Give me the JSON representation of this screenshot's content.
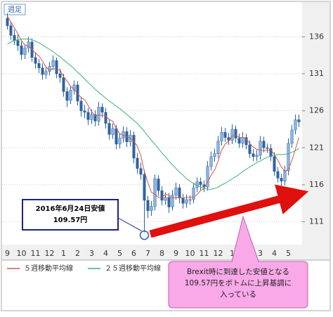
{
  "chart_data": {
    "type": "candlestick",
    "period_label": "週足",
    "categories": [
      "9",
      null,
      null,
      null,
      "10",
      null,
      null,
      null,
      "11",
      null,
      null,
      null,
      "12",
      null,
      null,
      null,
      "1",
      null,
      null,
      null,
      "2",
      null,
      null,
      null,
      "3",
      null,
      null,
      null,
      "4",
      null,
      null,
      null,
      "5",
      null,
      null,
      null,
      "6",
      null,
      null,
      null,
      "7",
      null,
      null,
      null,
      "8",
      null,
      null,
      null,
      "9",
      null,
      null,
      null,
      "10",
      null,
      null,
      null,
      "11",
      null,
      null,
      null,
      "12",
      null,
      null,
      null,
      "1",
      null,
      null,
      null,
      "2",
      null,
      null,
      null,
      "3",
      null,
      null,
      null,
      "4",
      null,
      null,
      null,
      "5",
      null,
      null,
      null
    ],
    "open": [
      138.5,
      137.5,
      136.2,
      135.5,
      134.8,
      133.6,
      134.5,
      135.3,
      133.2,
      132.4,
      131.8,
      130.9,
      131.3,
      132.0,
      132.8,
      131.0,
      130.5,
      128.6,
      127.4,
      128.8,
      129.5,
      127.3,
      126.0,
      125.8,
      124.8,
      125.5,
      124.6,
      126.5,
      125.8,
      124.3,
      122.8,
      123.6,
      121.5,
      122.3,
      123.2,
      121.8,
      122.7,
      119.6,
      118.2,
      117.4,
      113.9,
      112.5,
      113.1,
      116.8,
      115.2,
      113.9,
      114.3,
      113.0,
      114.6,
      115.6,
      114.2,
      113.5,
      114.0,
      114.0,
      115.6,
      116.4,
      116.0,
      115.7,
      118.5,
      119.8,
      120.2,
      121.9,
      123.1,
      122.4,
      122.0,
      123.5,
      122.3,
      121.6,
      122.4,
      121.4,
      120.2,
      119.8,
      120.0,
      121.9,
      121.0,
      120.9,
      119.8,
      117.8,
      116.9,
      116.5,
      117.9,
      121.6,
      123.4,
      124.8
    ],
    "high": [
      139.2,
      138.0,
      137.0,
      136.3,
      135.4,
      135.0,
      136.0,
      135.8,
      133.9,
      133.0,
      132.4,
      131.9,
      132.6,
      133.5,
      133.2,
      131.7,
      131.0,
      129.2,
      129.4,
      130.1,
      130.0,
      127.9,
      126.8,
      126.4,
      126.2,
      126.1,
      127.2,
      127.0,
      126.4,
      124.9,
      124.3,
      124.1,
      123.0,
      123.9,
      123.8,
      123.4,
      123.2,
      120.3,
      119.0,
      118.0,
      114.5,
      113.8,
      117.4,
      117.3,
      115.8,
      115.0,
      114.9,
      115.3,
      116.3,
      116.1,
      114.8,
      114.7,
      114.6,
      116.2,
      117.0,
      117.0,
      116.6,
      119.2,
      120.5,
      120.9,
      122.6,
      123.8,
      123.7,
      123.0,
      124.2,
      124.0,
      122.9,
      123.1,
      122.9,
      122.0,
      120.8,
      120.7,
      122.6,
      122.5,
      121.6,
      121.5,
      120.4,
      118.4,
      117.5,
      118.6,
      122.3,
      124.1,
      125.5,
      125.5
    ],
    "low": [
      137.0,
      135.6,
      134.9,
      134.1,
      132.9,
      133.0,
      133.9,
      132.6,
      131.7,
      131.1,
      130.2,
      130.3,
      130.8,
      131.5,
      130.4,
      129.8,
      127.9,
      126.5,
      126.9,
      128.2,
      126.7,
      125.2,
      125.0,
      124.1,
      124.2,
      123.9,
      124.0,
      125.1,
      123.6,
      122.1,
      122.2,
      120.8,
      120.9,
      121.7,
      121.1,
      121.2,
      118.9,
      117.5,
      116.7,
      109.57,
      111.5,
      111.8,
      112.5,
      114.5,
      113.2,
      113.3,
      112.2,
      112.5,
      114.0,
      113.5,
      112.8,
      112.9,
      113.3,
      113.5,
      115.0,
      115.3,
      115.0,
      115.2,
      117.9,
      119.1,
      119.6,
      121.3,
      121.8,
      121.4,
      121.5,
      121.7,
      121.0,
      121.0,
      120.8,
      119.6,
      119.2,
      119.2,
      119.4,
      120.4,
      120.3,
      119.2,
      117.2,
      116.3,
      115.9,
      115.9,
      117.3,
      121.0,
      122.8,
      123.8
    ],
    "close": [
      137.5,
      136.2,
      135.5,
      134.8,
      133.6,
      134.5,
      135.3,
      133.2,
      132.4,
      131.8,
      130.9,
      131.3,
      132.0,
      132.8,
      131.0,
      130.5,
      128.6,
      127.4,
      128.8,
      129.5,
      127.3,
      126.0,
      125.8,
      124.8,
      125.5,
      124.6,
      126.5,
      125.8,
      124.3,
      122.8,
      123.6,
      121.5,
      122.3,
      123.2,
      121.8,
      122.7,
      119.6,
      118.2,
      117.4,
      113.9,
      112.5,
      113.1,
      116.8,
      115.2,
      113.9,
      114.3,
      113.0,
      114.6,
      115.6,
      114.2,
      113.5,
      114.0,
      114.0,
      115.6,
      116.4,
      116.0,
      115.7,
      118.5,
      119.8,
      120.2,
      121.9,
      123.1,
      122.4,
      122.0,
      123.5,
      122.3,
      121.6,
      122.4,
      121.4,
      120.2,
      119.8,
      120.0,
      121.9,
      121.0,
      120.9,
      119.8,
      117.8,
      116.9,
      116.5,
      117.9,
      121.6,
      123.4,
      124.8,
      124.5
    ],
    "up_color": "#8ab4dc",
    "down_color": "#2f62a3",
    "series": [
      {
        "name": "５週移動平均線",
        "color": "#d9534f",
        "values": [
          138.8,
          138.0,
          137.2,
          136.4,
          135.5,
          134.9,
          134.7,
          134.3,
          133.8,
          133.4,
          132.7,
          131.9,
          131.5,
          131.7,
          131.6,
          131.5,
          130.6,
          130.0,
          129.3,
          128.9,
          128.3,
          127.8,
          127.5,
          126.7,
          125.9,
          125.3,
          125.4,
          125.4,
          125.3,
          124.8,
          124.6,
          123.6,
          122.9,
          122.7,
          122.5,
          122.3,
          121.9,
          121.2,
          119.9,
          117.8,
          116.3,
          115.0,
          114.7,
          114.3,
          114.3,
          114.7,
          114.6,
          114.2,
          114.3,
          114.3,
          114.2,
          114.3,
          114.3,
          114.3,
          114.7,
          115.2,
          115.5,
          116.4,
          117.3,
          118.0,
          119.2,
          120.7,
          121.5,
          121.9,
          122.6,
          122.7,
          122.4,
          122.4,
          122.2,
          121.6,
          121.1,
          120.8,
          120.7,
          120.6,
          120.7,
          120.7,
          120.1,
          119.3,
          118.4,
          117.8,
          118.1,
          119.3,
          120.8,
          122.4
        ]
      },
      {
        "name": "２５週移動平均線",
        "color": "#3cb371",
        "values": [
          135.0,
          135.3,
          135.5,
          135.6,
          135.7,
          135.7,
          135.7,
          135.6,
          135.4,
          135.2,
          134.9,
          134.6,
          134.3,
          134.0,
          133.6,
          133.3,
          132.9,
          132.5,
          132.1,
          131.7,
          131.2,
          130.8,
          130.3,
          129.8,
          129.4,
          128.9,
          128.5,
          128.1,
          127.7,
          127.3,
          127.0,
          126.6,
          126.3,
          125.9,
          125.5,
          125.1,
          124.7,
          124.3,
          123.8,
          123.2,
          122.6,
          122.0,
          121.5,
          120.9,
          120.3,
          119.8,
          119.2,
          118.7,
          118.2,
          117.7,
          117.3,
          116.8,
          116.5,
          116.2,
          115.9,
          115.7,
          115.5,
          115.4,
          115.4,
          115.5,
          115.7,
          116.0,
          116.2,
          116.5,
          116.8,
          117.1,
          117.4,
          117.8,
          118.1,
          118.4,
          118.7,
          119.0,
          119.2,
          119.5,
          119.7,
          119.9,
          120.0,
          120.1,
          120.1,
          120.1,
          120.2,
          120.4,
          120.6,
          120.9
        ]
      }
    ],
    "ylim": [
      108.2,
      140.5
    ],
    "yticks": [
      111,
      116,
      121,
      126,
      131,
      136
    ],
    "grid": true,
    "annotation": {
      "lines": [
        "2016年6月24日安値",
        "109.57円"
      ]
    },
    "callout": {
      "lines": [
        "Brexit時に到達した安値となる",
        "109.57円をボトムに上昇基調に",
        "入っている"
      ]
    }
  }
}
